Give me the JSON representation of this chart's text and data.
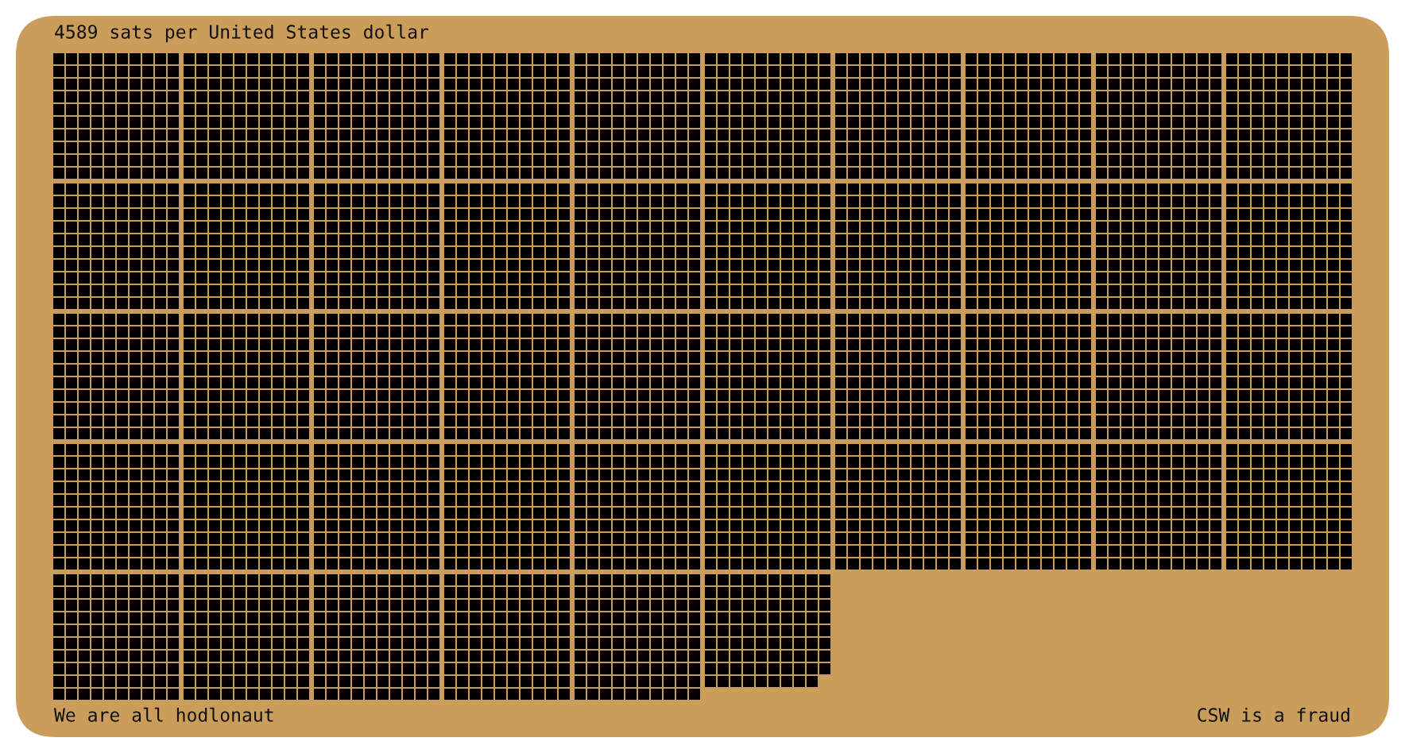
{
  "chart_data": {
    "type": "other",
    "title": "sats per United States dollar",
    "values": [
      4589
    ],
    "data_labels": true,
    "color": "#000000",
    "annotations": [
      "We are all hodlonaut",
      "CSW is a fraud"
    ]
  }
}
